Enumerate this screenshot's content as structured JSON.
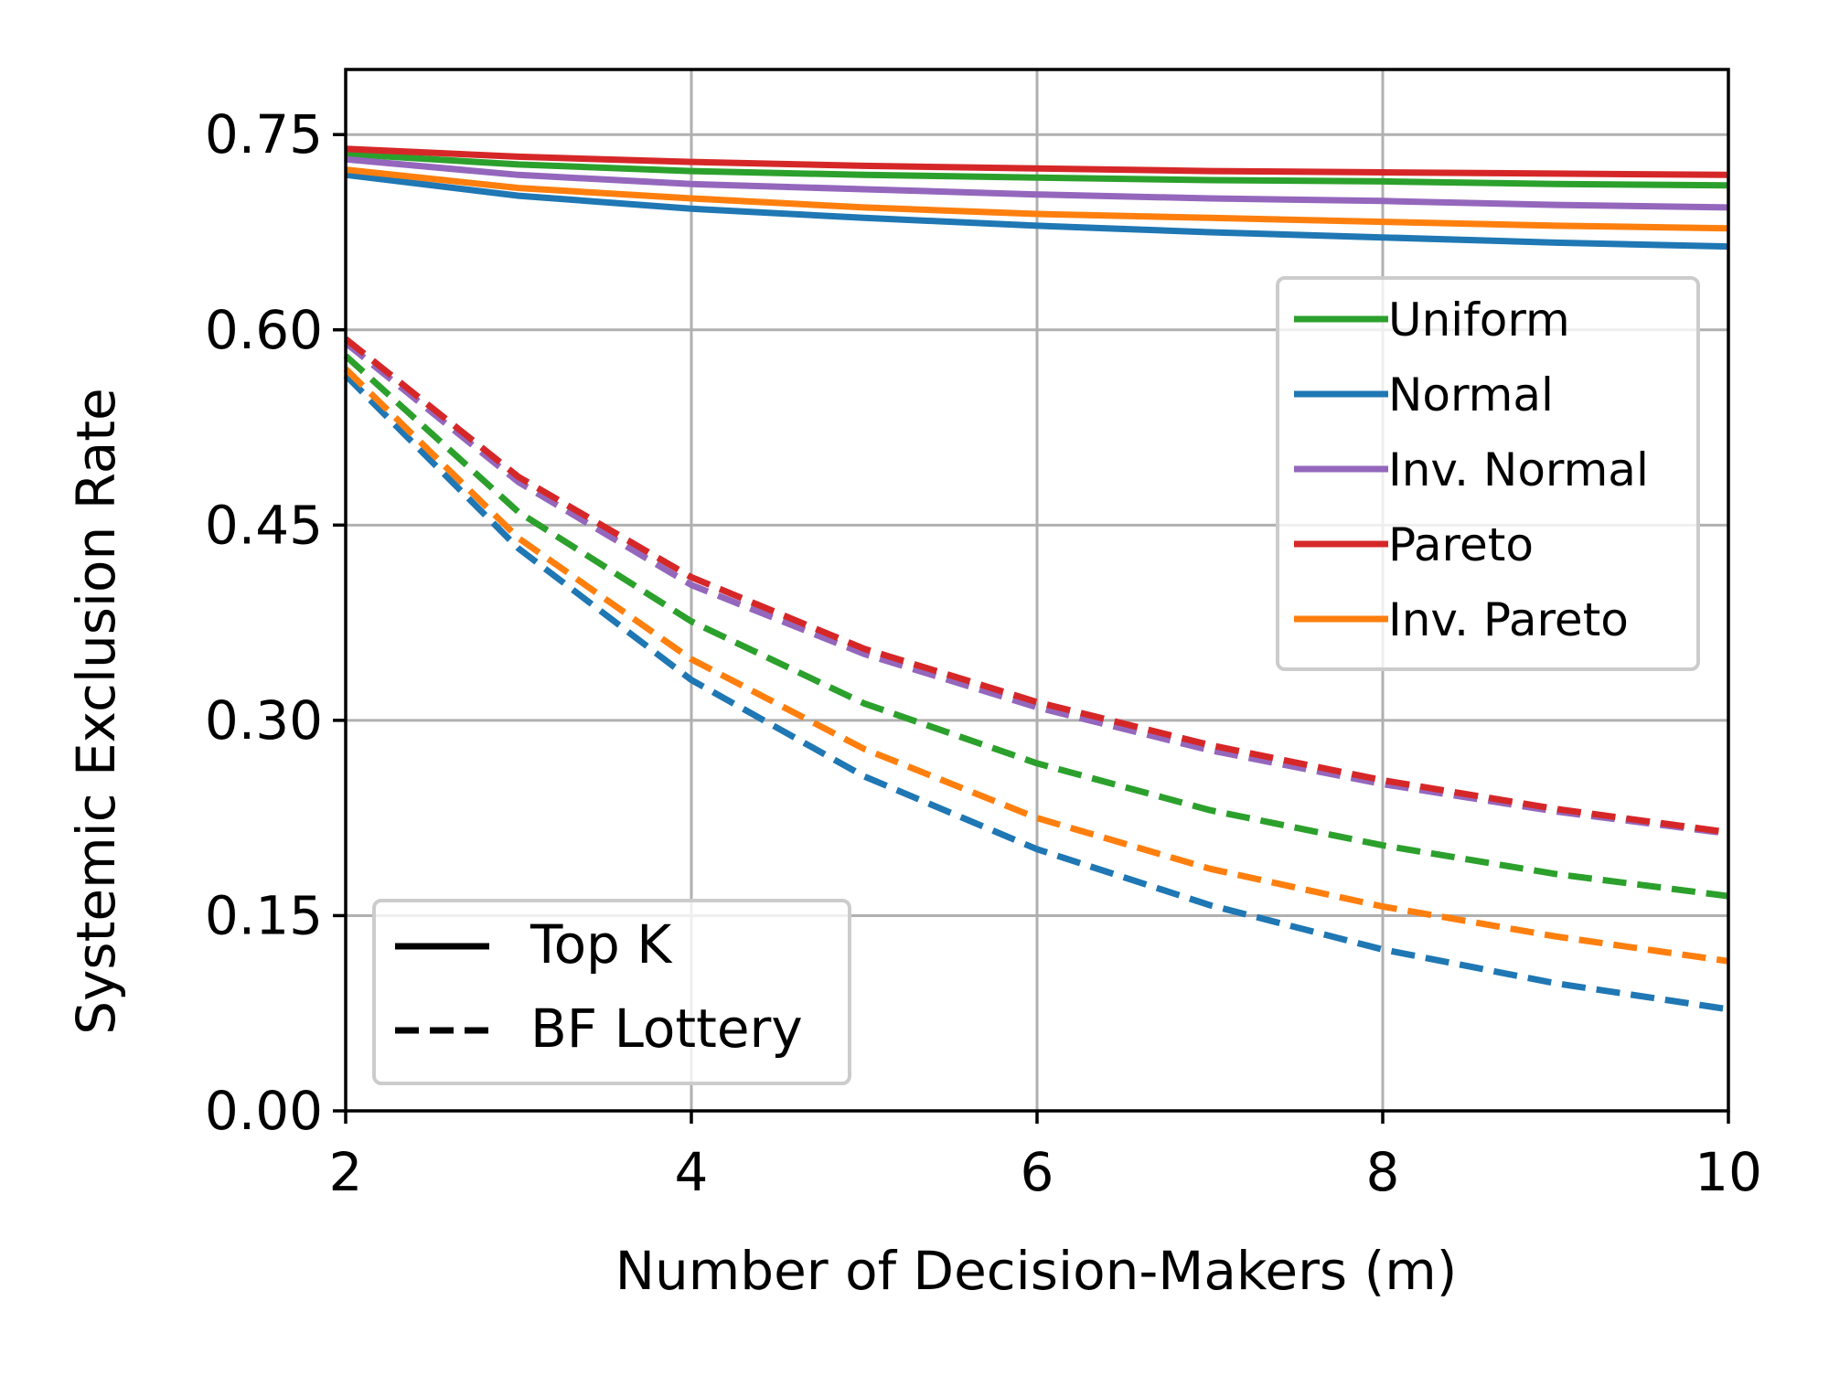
{
  "chart_data": {
    "type": "line",
    "xlabel": "Number of Decision-Makers (m)",
    "ylabel": "Systemic Exclusion Rate",
    "xlim": [
      2,
      10
    ],
    "ylim": [
      0,
      0.8
    ],
    "xticks": [
      2,
      4,
      6,
      8,
      10
    ],
    "xtick_labels": [
      "2",
      "4",
      "6",
      "8",
      "10"
    ],
    "yticks": [
      0,
      0.15,
      0.3,
      0.45,
      0.6,
      0.75
    ],
    "ytick_labels": [
      "0.00",
      "0.15",
      "0.30",
      "0.45",
      "0.60",
      "0.75"
    ],
    "grid": true,
    "x": [
      2,
      3,
      4,
      5,
      6,
      7,
      8,
      9,
      10
    ],
    "series": [
      {
        "name": "Uniform",
        "method": "Top K",
        "color": "#2ca02c",
        "style": "solid",
        "values": [
          0.735,
          0.727,
          0.722,
          0.719,
          0.717,
          0.715,
          0.714,
          0.712,
          0.711
        ]
      },
      {
        "name": "Normal",
        "method": "Top K",
        "color": "#1f77b4",
        "style": "solid",
        "values": [
          0.719,
          0.703,
          0.693,
          0.686,
          0.68,
          0.675,
          0.671,
          0.667,
          0.664
        ]
      },
      {
        "name": "Inv. Normal",
        "method": "Top K",
        "color": "#9467bd",
        "style": "solid",
        "values": [
          0.731,
          0.719,
          0.712,
          0.708,
          0.704,
          0.701,
          0.699,
          0.696,
          0.694
        ]
      },
      {
        "name": "Pareto",
        "method": "Top K",
        "color": "#d62728",
        "style": "solid",
        "values": [
          0.739,
          0.733,
          0.729,
          0.726,
          0.724,
          0.722,
          0.721,
          0.72,
          0.719
        ]
      },
      {
        "name": "Inv. Pareto",
        "method": "Top K",
        "color": "#ff7f0e",
        "style": "solid",
        "values": [
          0.723,
          0.709,
          0.701,
          0.694,
          0.689,
          0.686,
          0.683,
          0.68,
          0.678
        ]
      },
      {
        "name": "Uniform",
        "method": "BF Lottery",
        "color": "#2ca02c",
        "style": "dashed",
        "values": [
          0.58,
          0.46,
          0.376,
          0.313,
          0.267,
          0.231,
          0.204,
          0.182,
          0.165
        ]
      },
      {
        "name": "Normal",
        "method": "BF Lottery",
        "color": "#1f77b4",
        "style": "dashed",
        "values": [
          0.565,
          0.432,
          0.331,
          0.257,
          0.201,
          0.158,
          0.124,
          0.098,
          0.078
        ]
      },
      {
        "name": "Inv. Normal",
        "method": "BF Lottery",
        "color": "#9467bd",
        "style": "dashed",
        "values": [
          0.59,
          0.483,
          0.404,
          0.351,
          0.31,
          0.277,
          0.251,
          0.23,
          0.213
        ]
      },
      {
        "name": "Pareto",
        "method": "BF Lottery",
        "color": "#d62728",
        "style": "dashed",
        "values": [
          0.593,
          0.487,
          0.41,
          0.355,
          0.314,
          0.281,
          0.254,
          0.232,
          0.214
        ]
      },
      {
        "name": "Inv. Pareto",
        "method": "BF Lottery",
        "color": "#ff7f0e",
        "style": "dashed",
        "values": [
          0.57,
          0.44,
          0.347,
          0.278,
          0.225,
          0.186,
          0.157,
          0.134,
          0.115
        ]
      }
    ],
    "legends": [
      {
        "placement": "right",
        "entries": [
          {
            "label": "Uniform",
            "color": "#2ca02c",
            "style": "solid"
          },
          {
            "label": "Normal",
            "color": "#1f77b4",
            "style": "solid"
          },
          {
            "label": "Inv. Normal",
            "color": "#9467bd",
            "style": "solid"
          },
          {
            "label": "Pareto",
            "color": "#d62728",
            "style": "solid"
          },
          {
            "label": "Inv. Pareto",
            "color": "#ff7f0e",
            "style": "solid"
          }
        ]
      },
      {
        "placement": "lower left",
        "entries": [
          {
            "label": "Top K",
            "color": "#000000",
            "style": "solid"
          },
          {
            "label": "BF Lottery",
            "color": "#000000",
            "style": "dashed"
          }
        ]
      }
    ]
  }
}
